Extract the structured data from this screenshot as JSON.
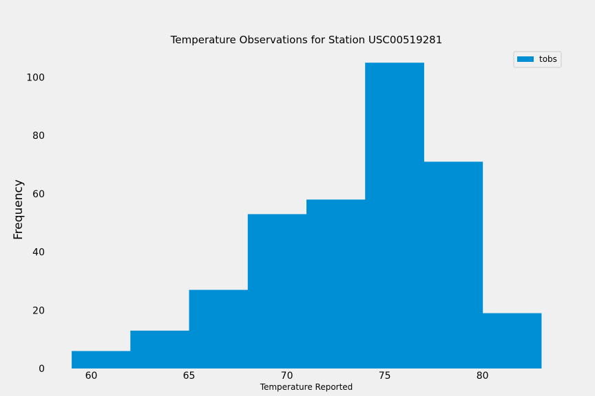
{
  "chart_data": {
    "type": "bar",
    "subtype": "histogram",
    "title": "Temperature Observations for Station USC00519281",
    "xlabel": "Temperature Reported",
    "ylabel": "Frequency",
    "xlim": [
      57.8,
      84.2
    ],
    "ylim": [
      0,
      110
    ],
    "xticks": [
      60,
      65,
      70,
      75,
      80
    ],
    "yticks": [
      0,
      20,
      40,
      60,
      80,
      100
    ],
    "bin_edges": [
      59,
      62,
      65,
      68,
      71,
      74,
      77,
      80,
      83
    ],
    "series": [
      {
        "name": "tobs",
        "color": "#008fd5",
        "values": [
          6,
          13,
          27,
          53,
          58,
          105,
          71,
          19
        ]
      }
    ],
    "grid": false,
    "legend": {
      "position": "top-right",
      "entries": [
        "tobs"
      ]
    }
  }
}
